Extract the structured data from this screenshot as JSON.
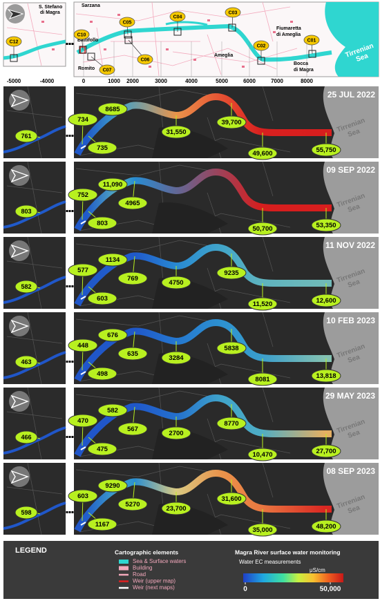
{
  "top_map": {
    "places": {
      "stefano": [
        "S. Stefano",
        "di Magra"
      ],
      "sarzana": "Sarzana",
      "battifollo": "Battifollo",
      "romito": "Romito",
      "ameglia": "Ameglia",
      "fiumaretta": [
        "Fiumaretta",
        "di Ameglia"
      ],
      "bocca": [
        "Bocca",
        "di Magra"
      ]
    },
    "sea_label": [
      "Tirrenian",
      "Sea"
    ],
    "stations": [
      "C12",
      "C10",
      "C07",
      "C06",
      "C05",
      "C04",
      "C03",
      "C02",
      "C01"
    ],
    "distance_ticks": [
      -5000,
      -4000,
      0,
      1000,
      2000,
      3000,
      4000,
      5000,
      6000,
      7000,
      8000
    ]
  },
  "panels": [
    {
      "date": "25 JUL 2022",
      "inset": 761,
      "measurements": [
        734,
        735,
        8685,
        null,
        {
          "value": 31550,
          "label": "31,550"
        },
        {
          "value": 39700,
          "label": "39,700"
        },
        {
          "value": 49600,
          "label": "49,600"
        },
        {
          "value": 55750,
          "label": "55,750"
        }
      ]
    },
    {
      "date": "09 SEP 2022",
      "inset": 803,
      "measurements": [
        752,
        803,
        {
          "value": 11090,
          "label": "11,090"
        },
        4965,
        null,
        null,
        {
          "value": 50700,
          "label": "50,700"
        },
        {
          "value": 53350,
          "label": "53,350"
        }
      ]
    },
    {
      "date": "11 NOV 2022",
      "inset": 582,
      "measurements": [
        577,
        603,
        1134,
        769,
        4750,
        9235,
        {
          "value": 11520,
          "label": "11,520"
        },
        {
          "value": 12600,
          "label": "12,600"
        }
      ]
    },
    {
      "date": "10 FEB 2023",
      "inset": 463,
      "measurements": [
        448,
        498,
        676,
        635,
        3284,
        5838,
        8081,
        {
          "value": 13818,
          "label": "13,818"
        }
      ]
    },
    {
      "date": "29 MAY 2023",
      "inset": 466,
      "measurements": [
        470,
        475,
        582,
        567,
        2700,
        8770,
        {
          "value": 10470,
          "label": "10,470"
        },
        {
          "value": 27700,
          "label": "27,700"
        }
      ]
    },
    {
      "date": "08 SEP 2023",
      "inset": 598,
      "measurements": [
        603,
        1167,
        9290,
        5270,
        {
          "value": 23700,
          "label": "23,700"
        },
        {
          "value": 31600,
          "label": "31,600"
        },
        {
          "value": 35000,
          "label": "35,000"
        },
        {
          "value": 48200,
          "label": "48,200"
        }
      ]
    }
  ],
  "legend": {
    "title": "LEGEND",
    "cartographic": {
      "title": "Cartographic elements",
      "items": [
        "Sea & Surface waters",
        "Building",
        "Road",
        "Weir (upper map)",
        "Weir (next maps)"
      ]
    },
    "monitoring": {
      "title": "Magra River surface water monitoring",
      "subtitle": "Water EC measurements",
      "unit": "μS/cm",
      "min": 0,
      "max": {
        "value": 50000,
        "label": "50,000"
      }
    }
  }
}
